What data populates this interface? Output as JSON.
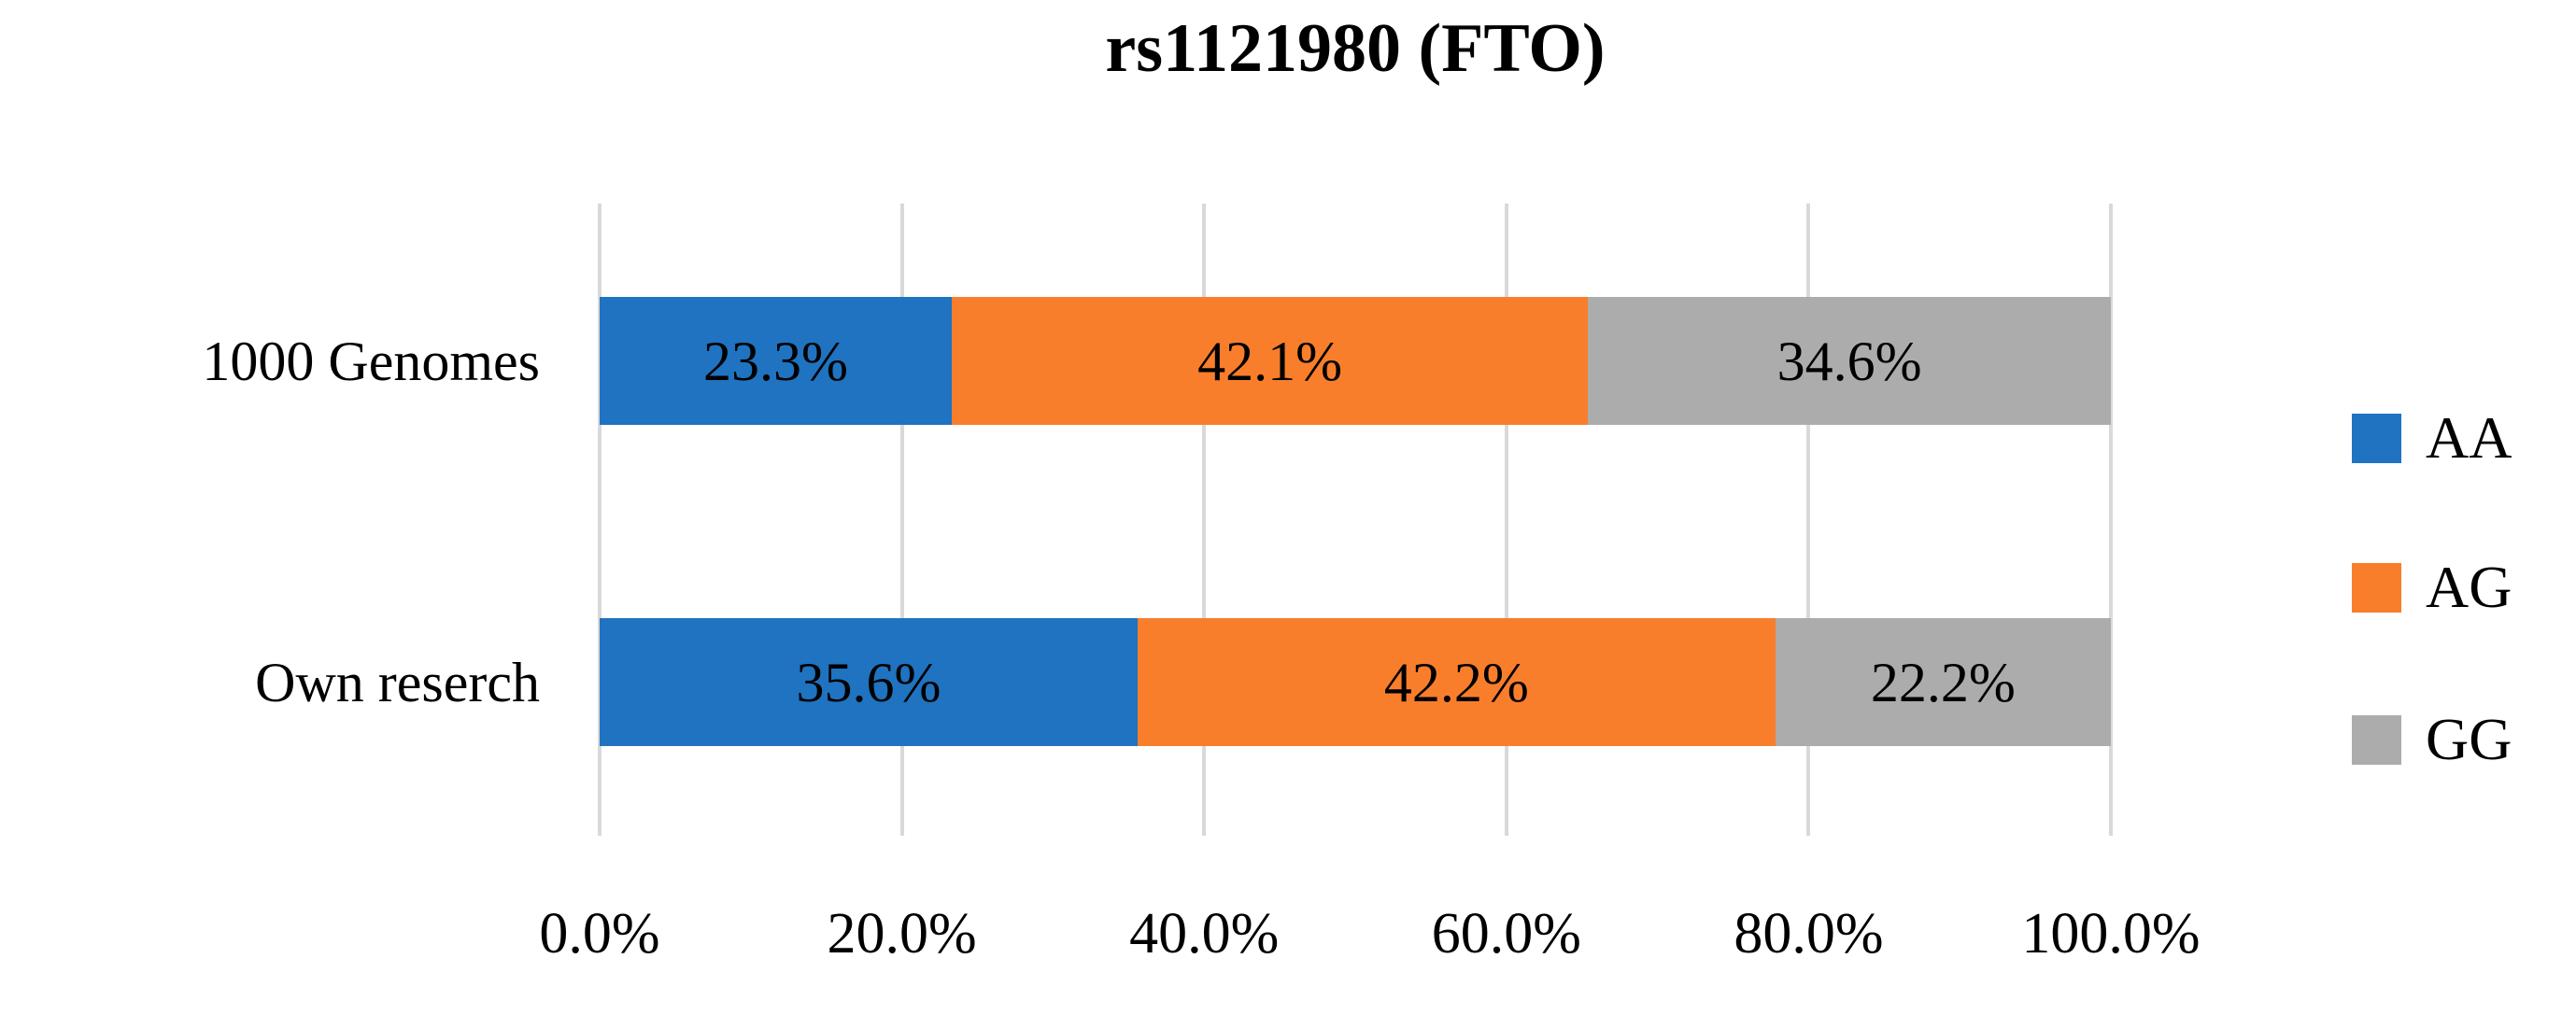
{
  "chart_data": {
    "type": "bar",
    "orientation": "horizontal",
    "stacked": true,
    "title": "rs1121980 (FTO)",
    "categories": [
      "1000 Genomes",
      "Own reserch"
    ],
    "series": [
      {
        "name": "AA",
        "color": "#1F73C0",
        "values": [
          23.3,
          35.6
        ],
        "labels": [
          "23.3%",
          "35.6%"
        ]
      },
      {
        "name": "AG",
        "color": "#F97E2B",
        "values": [
          42.1,
          42.2
        ],
        "labels": [
          "42.1%",
          "42.2%"
        ]
      },
      {
        "name": "GG",
        "color": "#ACACAC",
        "values": [
          34.6,
          22.2
        ],
        "labels": [
          "34.6%",
          "22.2%"
        ]
      }
    ],
    "x_ticks": [
      "0.0%",
      "20.0%",
      "40.0%",
      "60.0%",
      "80.0%",
      "100.0%"
    ],
    "xlim": [
      0,
      100
    ],
    "grid": true,
    "legend_position": "right",
    "legend": [
      "AA",
      "AG",
      "GG"
    ]
  },
  "colors": {
    "gridline": "#D9D9D9",
    "text": "#000000",
    "background": "#FFFFFF"
  }
}
